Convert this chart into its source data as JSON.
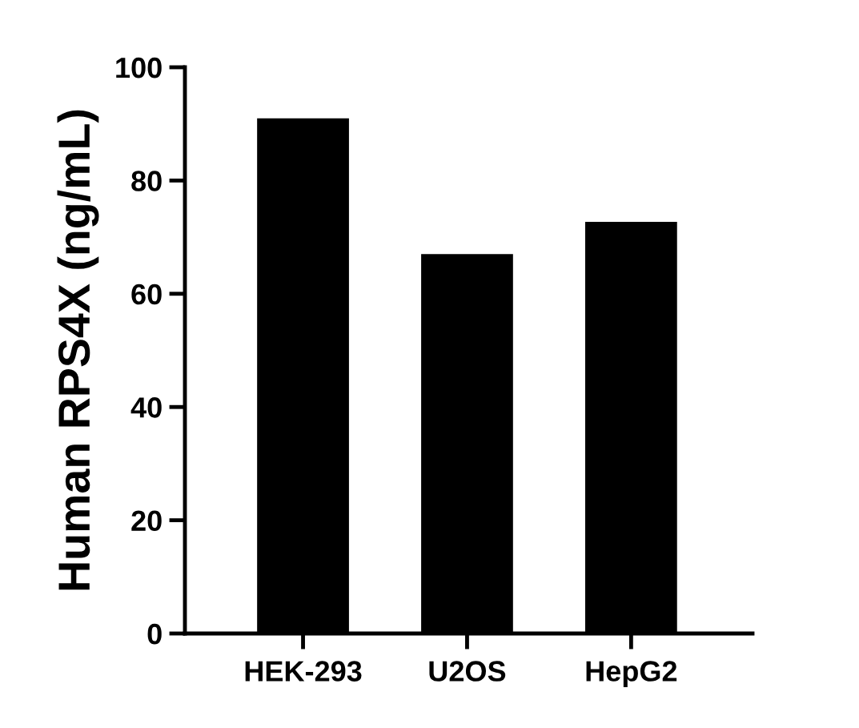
{
  "chart_data": {
    "type": "bar",
    "ylabel": "Human RPS4X (ng/mL)",
    "categories": [
      "HEK-293",
      "U2OS",
      "HepG2"
    ],
    "values": [
      91,
      67,
      72.7
    ],
    "color": "#000000",
    "ylim": [
      0,
      100
    ],
    "yticks": [
      0,
      20,
      40,
      60,
      80,
      100
    ],
    "grid": false,
    "legend": false
  }
}
